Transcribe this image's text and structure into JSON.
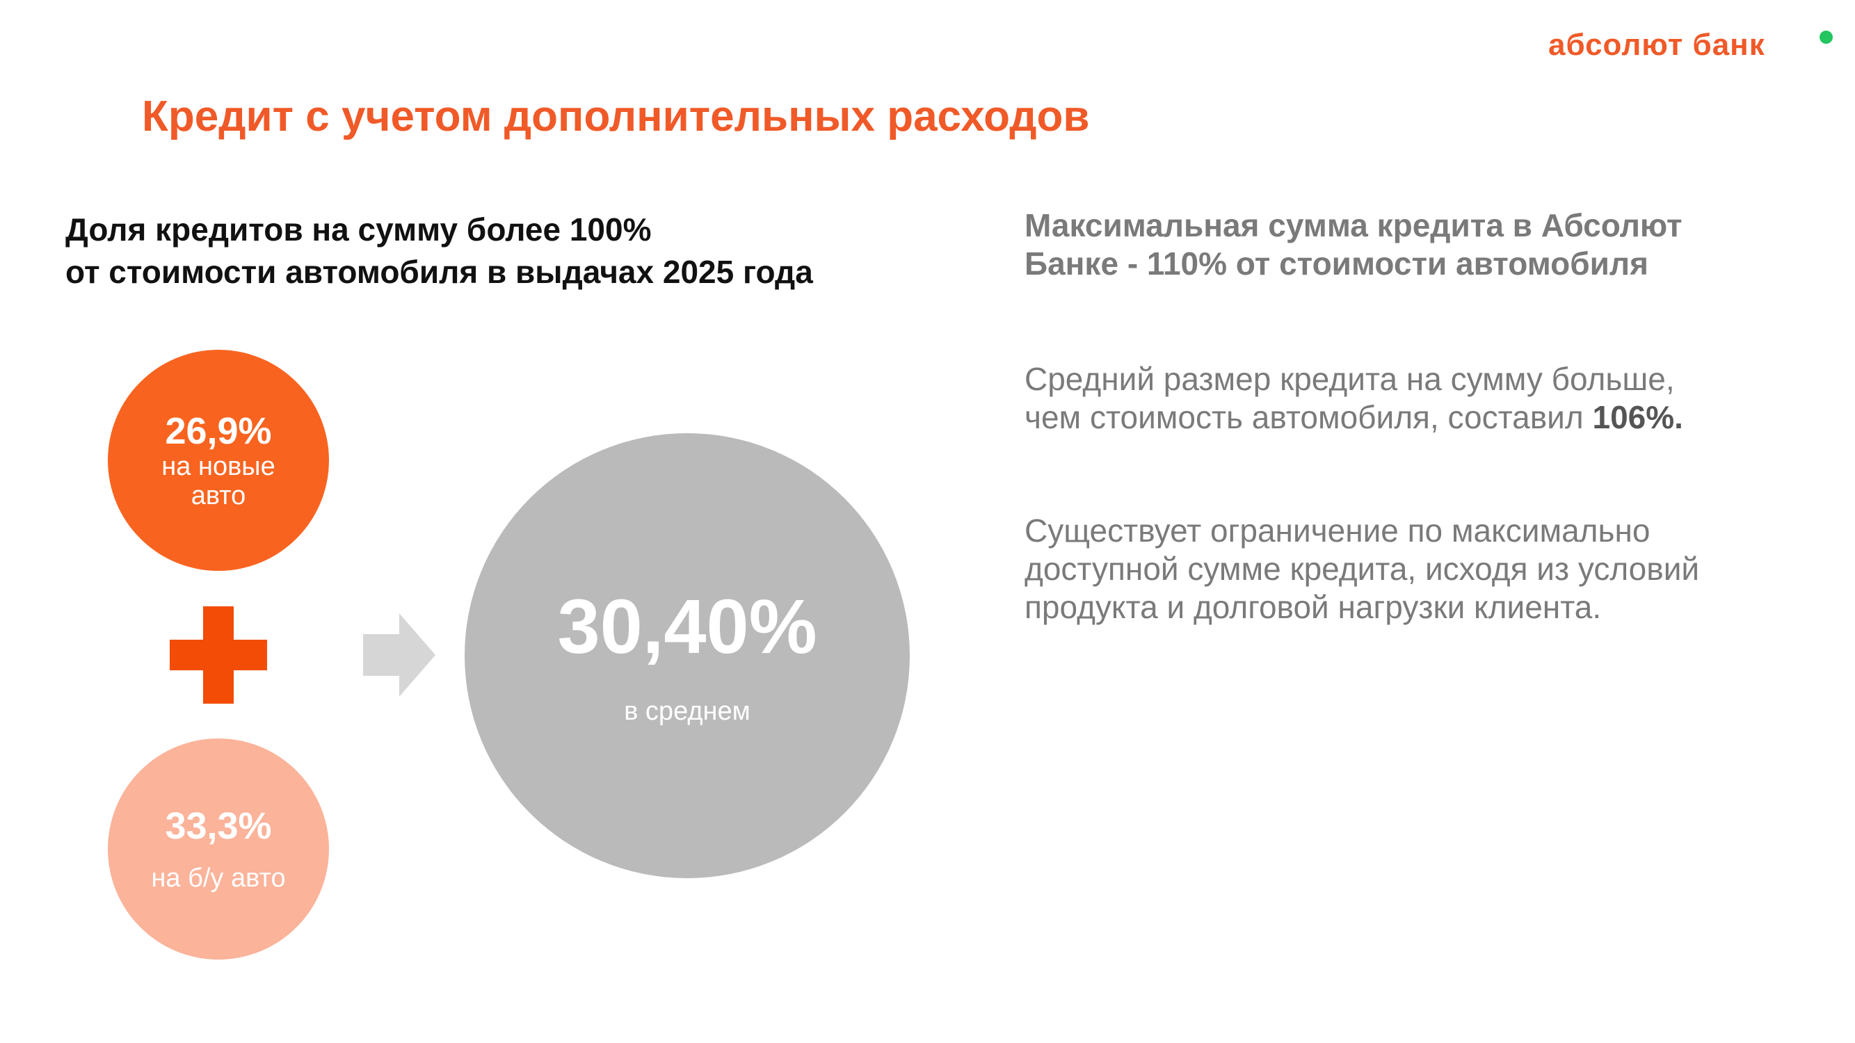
{
  "logo": {
    "text": "абсолют банк",
    "accent_color": "#f05a28",
    "dot_color": "#22c55e"
  },
  "title": "Кредит с учетом дополнительных расходов",
  "subtitle": {
    "line1": "Доля кредитов на сумму более 100%",
    "line2": "от стоимости автомобиля в выдачах 2025 года"
  },
  "circles": {
    "new_cars": {
      "value": "26,9%",
      "label": "на новые авто",
      "color": "#f86420"
    },
    "used_cars": {
      "value": "33,3%",
      "label": "на б/у авто",
      "color": "#fbb39a"
    },
    "average": {
      "value": "30,40%",
      "label": "в среднем",
      "color": "#bababa"
    }
  },
  "icons": {
    "plus": "plus-icon",
    "arrow": "arrow-right-icon"
  },
  "info": {
    "heading_line1": "Максимальная сумма кредита в Абсолют",
    "heading_line2": "Банке  - 110% от стоимости автомобиля",
    "para1_line1": "Средний размер кредита на сумму больше,",
    "para1_line2_prefix": "чем стоимость автомобиля,  составил ",
    "para1_value": "106%.",
    "para2_line1": "Существует ограничение по максимально",
    "para2_line2": "доступной сумме кредита, исходя из условий",
    "para2_line3": "продукта и долговой нагрузки клиента."
  }
}
